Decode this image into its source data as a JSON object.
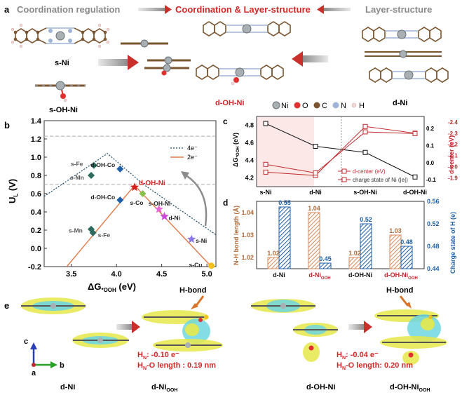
{
  "panel_a": {
    "letter": "a",
    "title_left": "Coordination regulation",
    "title_center": "Coordination & Layer-structure",
    "title_right": "Layer-structure",
    "label_sNi": "s-Ni",
    "label_sOHNi": "s-OH-Ni",
    "label_dOHNi": "d-OH-Ni",
    "label_dNi": "d-Ni",
    "legend": [
      {
        "label": "Ni",
        "color": "#9aa3a8"
      },
      {
        "label": "O",
        "color": "#e03030"
      },
      {
        "label": "C",
        "color": "#7a5530"
      },
      {
        "label": "N",
        "color": "#9fb4d6"
      },
      {
        "label": "H",
        "color": "#f2d7d7"
      }
    ]
  },
  "panel_b": {
    "letter": "b",
    "chart_data": {
      "type": "scatter",
      "xlabel": "ΔG*OOH (eV)",
      "ylabel": "UL (V)",
      "xlim": [
        3.2,
        5.1
      ],
      "ylim": [
        -0.2,
        1.4
      ],
      "xticks": [
        "3.5",
        "4.0",
        "4.5",
        "5.0"
      ],
      "yticks": [
        "-0.2",
        "0.0",
        "0.2",
        "0.4",
        "0.6",
        "0.8",
        "1.0",
        "1.2",
        "1.4"
      ],
      "legend": [
        "4e⁻",
        "2e⁻"
      ],
      "reference_lines": [
        1.23,
        0.7
      ],
      "points": [
        {
          "label": "s-Fe",
          "x": 3.75,
          "y": 0.91,
          "color": "#2e6b5e",
          "shape": "diamond"
        },
        {
          "label": "s-Mn",
          "x": 3.72,
          "y": 0.8,
          "color": "#2e6b5e",
          "shape": "diamond"
        },
        {
          "label": "d-OH-Co",
          "x": 4.04,
          "y": 0.87,
          "color": "#1f5fa8",
          "shape": "diamond"
        },
        {
          "label": "d-OH-Ni",
          "x": 4.2,
          "y": 0.67,
          "color": "#d62020",
          "shape": "star"
        },
        {
          "label": "d-OH-Co",
          "x": 4.04,
          "y": 0.53,
          "color": "#1f5fa8",
          "shape": "diamond"
        },
        {
          "label": "s-Co",
          "x": 4.29,
          "y": 0.6,
          "color": "#8ac04a",
          "shape": "diamond"
        },
        {
          "label": "s-OH-Ni",
          "x": 4.47,
          "y": 0.43,
          "color": "#e86ad8",
          "shape": "star"
        },
        {
          "label": "d-Ni",
          "x": 4.53,
          "y": 0.35,
          "color": "#c94cd8",
          "shape": "star"
        },
        {
          "label": "s-Ni",
          "x": 4.83,
          "y": 0.1,
          "color": "#8a78e8",
          "shape": "star"
        },
        {
          "label": "s-Mn",
          "x": 3.72,
          "y": 0.21,
          "color": "#2e6b5e",
          "shape": "diamond"
        },
        {
          "label": "s-Fe",
          "x": 3.74,
          "y": 0.17,
          "color": "#2e6b5e",
          "shape": "diamond"
        },
        {
          "label": "s-Cu",
          "x": 5.05,
          "y": -0.19,
          "color": "#f2c021",
          "shape": "circle"
        }
      ]
    }
  },
  "panel_c": {
    "letter": "c",
    "chart_data": {
      "type": "line",
      "categories": [
        "s-Ni",
        "d-Ni",
        "s-OH-Ni",
        "d-OH-Ni"
      ],
      "ylabel_left": "ΔG*OOH (eV)",
      "ylim_left": [
        4.2,
        4.9
      ],
      "yticks_left": [
        "4.2",
        "4.4",
        "4.6",
        "4.8"
      ],
      "ylabel_right_outer": "d-center (eV)",
      "yticks_right_outer": [
        "-1.9",
        "-2.0",
        "-2.1",
        "-2.2",
        "-2.3",
        "-2.4"
      ],
      "yticks_right_inner": [
        "-0.1",
        "0.0",
        "0.1",
        "0.2"
      ],
      "series": [
        {
          "name": "ΔG*OOH",
          "color": "#111111",
          "values": [
            4.82,
            4.56,
            4.49,
            4.21
          ]
        },
        {
          "name": "d-center (eV)",
          "color": "#c0282d",
          "values": [
            -1.95,
            -1.92,
            -2.36,
            -2.3
          ]
        },
        {
          "name": "charge state of Ni (|e|)",
          "color": "#c0282d",
          "values": [
            -0.01,
            -0.06,
            0.18,
            0.17
          ]
        }
      ]
    }
  },
  "panel_d": {
    "letter": "d",
    "chart_data": {
      "type": "bar",
      "categories": [
        "d-Ni",
        "d-NiOOH",
        "d-OH-Ni",
        "d-OH-NiOOH"
      ],
      "ylabel_left": "N-H bond length (Å)",
      "ylabel_right": "Charge state of H (e)",
      "ylim_left": [
        1.015,
        1.045
      ],
      "yticks_left": [
        "1.02",
        "1.03",
        "1.04"
      ],
      "ylim_right": [
        0.44,
        0.56
      ],
      "yticks_right": [
        "0.44",
        "0.48",
        "0.52",
        "0.56"
      ],
      "series": [
        {
          "name": "N-H bond length",
          "color": "#d9895a",
          "values": [
            1.02,
            1.04,
            1.02,
            1.03
          ]
        },
        {
          "name": "Charge state of H",
          "color": "#1f5fa8",
          "values": [
            0.55,
            0.45,
            0.52,
            0.48
          ]
        }
      ],
      "value_labels_left": [
        "1.02",
        "1.04",
        "1.02",
        "1.03"
      ],
      "value_labels_right": [
        "0.55",
        "0.45",
        "0.52",
        "0.48"
      ]
    }
  },
  "panel_e": {
    "letter": "e",
    "hbond_left": "H-bond",
    "hbond_right": "H-bond",
    "charge_left": "H",
    "charge_left_sub": "N",
    "charge_left_value": ": -0.10 e⁻",
    "len_left_value": "-O length : 0.19 nm",
    "charge_right_value": ": -0.04 e⁻",
    "len_right_value": "-O length: 0.20 nm",
    "label_dNi": "d-Ni",
    "label_dNiOOH": "d-Ni",
    "label_dOHNi": "d-OH-Ni",
    "label_dOHNiOOH": "d-OH-Ni",
    "sub_OOH": "OOH",
    "axis_c": "c",
    "axis_a": "a",
    "axis_b": "b"
  }
}
